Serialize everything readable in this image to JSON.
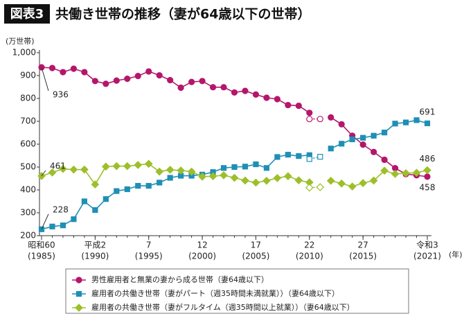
{
  "chart_data": {
    "type": "line",
    "figure_label": "図表3",
    "title": "共働き世帯の推移（妻が64歳以下の世帯）",
    "y_unit": "(万世帯)",
    "x_unit": "(年)",
    "x": [
      1985,
      1986,
      1987,
      1988,
      1989,
      1990,
      1991,
      1992,
      1993,
      1994,
      1995,
      1996,
      1997,
      1998,
      1999,
      2000,
      2001,
      2002,
      2003,
      2004,
      2005,
      2006,
      2007,
      2008,
      2009,
      2010,
      2011,
      2012,
      2013,
      2014,
      2015,
      2016,
      2017,
      2018,
      2019,
      2020,
      2021
    ],
    "xlim": [
      1985,
      2021
    ],
    "xticks": [
      {
        "value": 1985,
        "label": "昭和60"
      },
      {
        "value": 1990,
        "label": "平成2"
      },
      {
        "value": 1995,
        "label": "7"
      },
      {
        "value": 2000,
        "label": "12"
      },
      {
        "value": 2005,
        "label": "17"
      },
      {
        "value": 2010,
        "label": "22"
      },
      {
        "value": 2015,
        "label": "27"
      },
      {
        "value": 2021,
        "label": "令和3"
      }
    ],
    "xticks_western": [
      {
        "value": 1985,
        "label": "(1985)"
      },
      {
        "value": 1990,
        "label": "(1990)"
      },
      {
        "value": 1995,
        "label": "(1995)"
      },
      {
        "value": 2000,
        "label": "(2000)"
      },
      {
        "value": 2005,
        "label": "(2005)"
      },
      {
        "value": 2010,
        "label": "(2010)"
      },
      {
        "value": 2015,
        "label": "(2015)"
      },
      {
        "value": 2021,
        "label": "(2021)"
      }
    ],
    "ylim": [
      200,
      1000
    ],
    "yticks": [
      200,
      300,
      400,
      500,
      600,
      700,
      800,
      900,
      {
        "value": 1000,
        "label": "1,000"
      }
    ],
    "series": [
      {
        "name": "男性雇用者と無業の妻から成る世帯（妻64歳以下）",
        "color": "#b5166b",
        "marker": "circle",
        "values": [
          936,
          933,
          915,
          930,
          915,
          876,
          864,
          878,
          886,
          898,
          918,
          901,
          880,
          847,
          872,
          876,
          849,
          849,
          826,
          833,
          817,
          803,
          797,
          771,
          768,
          737,
          null,
          717,
          687,
          637,
          598,
          566,
          532,
          495,
          469,
          464,
          458
        ],
        "estimate_x": [
          2010,
          2011
        ],
        "estimate_values": [
          710,
          710
        ]
      },
      {
        "name": "雇用者の共働き世帯（妻がパート（週35時間未満就業））（妻64歳以下）",
        "color": "#1f8fb5",
        "marker": "square",
        "values": [
          228,
          240,
          245,
          272,
          350,
          312,
          360,
          395,
          403,
          418,
          418,
          432,
          453,
          462,
          462,
          467,
          478,
          496,
          500,
          502,
          512,
          496,
          544,
          554,
          548,
          552,
          null,
          581,
          602,
          621,
          628,
          637,
          651,
          690,
          695,
          705,
          691
        ],
        "estimate_x": [
          2010,
          2011
        ],
        "estimate_values": [
          535,
          545
        ]
      },
      {
        "name": "雇用者の共働き世帯（妻がフルタイム（週35時間以上就業））（妻64歳以下）",
        "color": "#9dbf2a",
        "marker": "diamond",
        "values": [
          461,
          476,
          492,
          489,
          489,
          424,
          502,
          504,
          504,
          509,
          514,
          480,
          488,
          485,
          480,
          458,
          460,
          464,
          453,
          441,
          432,
          440,
          452,
          460,
          442,
          433,
          null,
          440,
          428,
          415,
          430,
          441,
          484,
          470,
          473,
          475,
          486
        ],
        "estimate_x": [
          2010,
          2011
        ],
        "estimate_values": [
          410,
          412
        ]
      }
    ]
  }
}
